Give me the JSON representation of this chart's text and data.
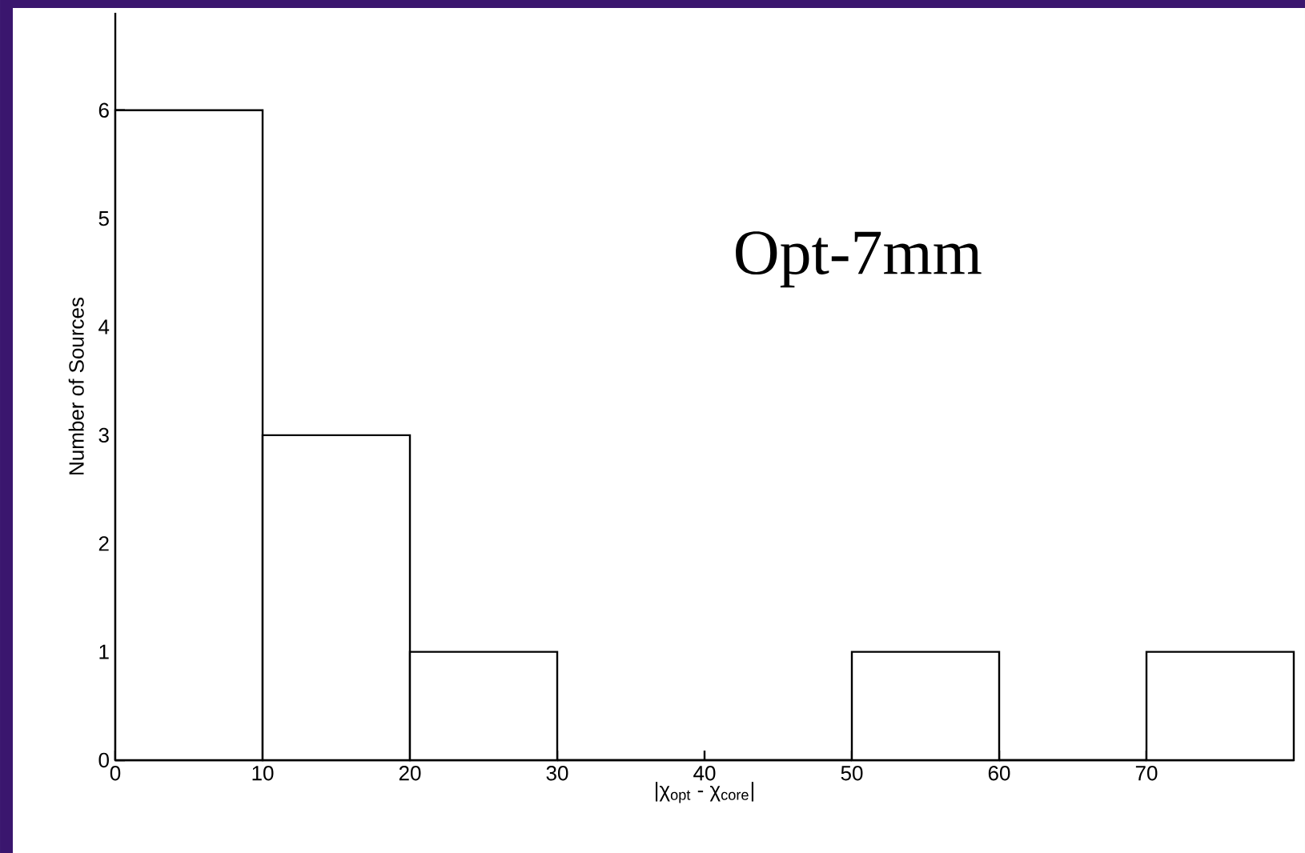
{
  "chart_data": {
    "type": "histogram",
    "bins": [
      0,
      10,
      20,
      30,
      40,
      50,
      60,
      70,
      80
    ],
    "values": [
      6,
      3,
      1,
      0,
      0,
      1,
      0,
      1
    ],
    "color": "#ffffff",
    "xlim": [
      0,
      80
    ],
    "ylim": [
      0,
      6.9
    ],
    "xticks": [
      0,
      10,
      20,
      30,
      40,
      50,
      60,
      70
    ],
    "yticks": [
      0,
      1,
      2,
      3,
      4,
      5,
      6
    ],
    "xlabel": "|χ$_{opt}$ - χ$_{core}$|",
    "ylabel": "Number of Sources",
    "annotations": [
      "Opt-7mm"
    ]
  }
}
